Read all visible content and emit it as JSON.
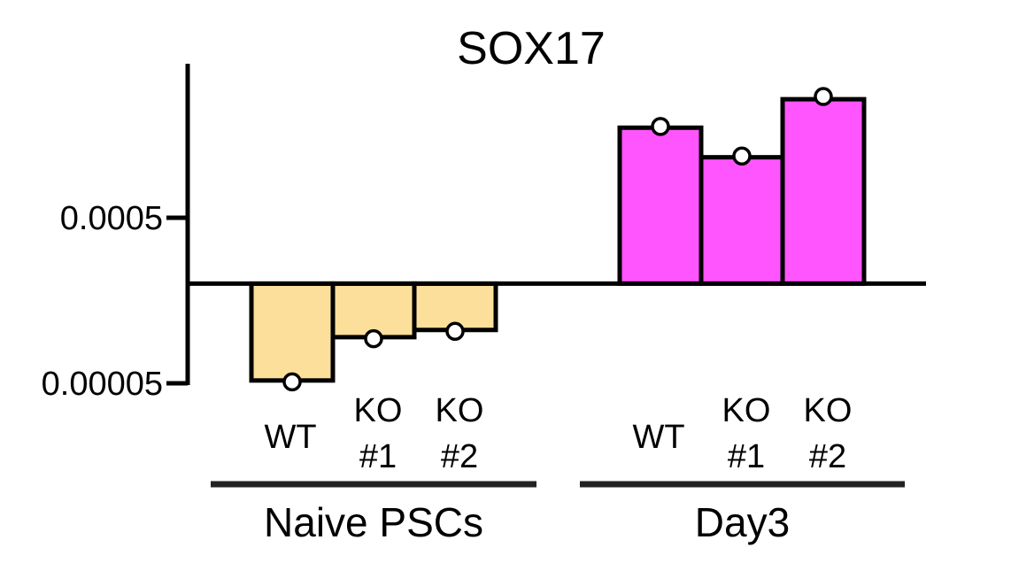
{
  "chart_data": {
    "type": "bar",
    "title": "SOX17",
    "yscale": "log",
    "baseline": 0.0002,
    "yticks": [
      {
        "value": 0.0005,
        "label": "0.0005"
      },
      {
        "value": 5e-05,
        "label": "0.00005"
      }
    ],
    "groups": [
      {
        "label": "Naive PSCs",
        "color": "#fcdf9a",
        "bars": [
          {
            "label_lines": [
              "WT"
            ],
            "value": 5.2e-05,
            "point": 5.1e-05
          },
          {
            "label_lines": [
              "KO",
              "#1"
            ],
            "value": 9.5e-05,
            "point": 9.3e-05
          },
          {
            "label_lines": [
              "KO",
              "#2"
            ],
            "value": 0.000105,
            "point": 0.000103
          }
        ]
      },
      {
        "label": "Day3",
        "color": "#ff55ff",
        "bars": [
          {
            "label_lines": [
              "WT"
            ],
            "value": 0.00175,
            "point": 0.00178
          },
          {
            "label_lines": [
              "KO",
              "#1"
            ],
            "value": 0.00116,
            "point": 0.00118
          },
          {
            "label_lines": [
              "KO",
              "#2"
            ],
            "value": 0.0026,
            "point": 0.0027
          }
        ]
      }
    ]
  }
}
